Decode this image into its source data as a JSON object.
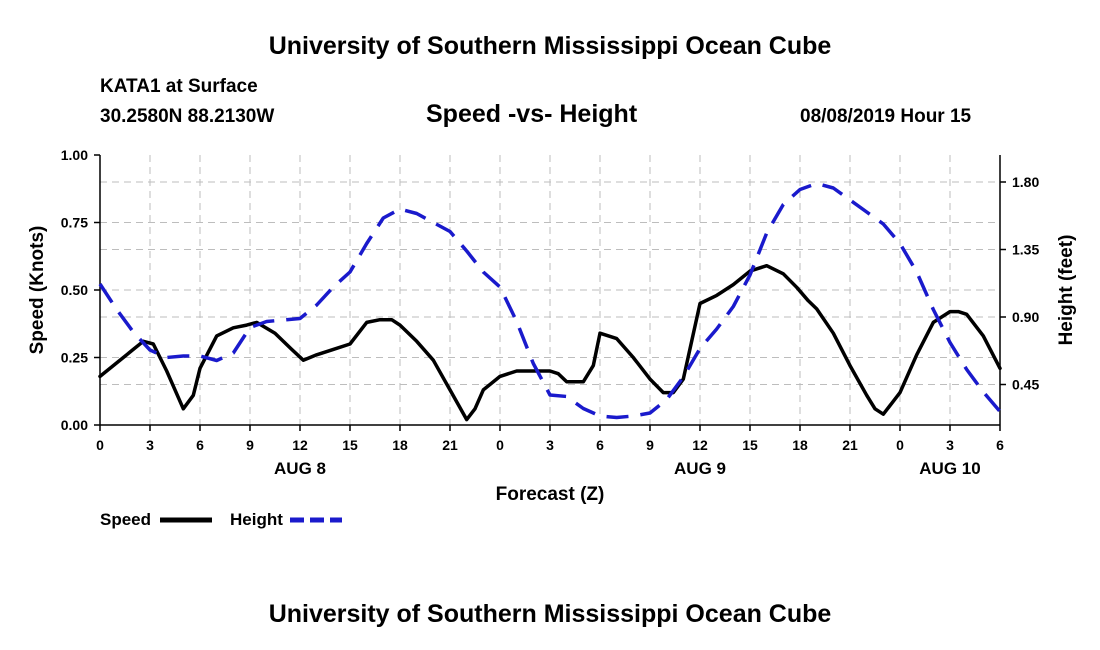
{
  "header": {
    "title": "University of Southern Mississippi Ocean Cube",
    "station": "KATA1 at Surface",
    "coords": "30.2580N 88.2130W",
    "subtitle": "Speed -vs- Height",
    "date": "08/08/2019 Hour 15"
  },
  "footer": {
    "title": "University of Southern Mississippi Ocean Cube"
  },
  "legend": {
    "speed_label": "Speed",
    "height_label": "Height"
  },
  "colors": {
    "speed": "#000000",
    "height": "#1a1acc",
    "grid": "#bdbdbd"
  },
  "chart_data": {
    "type": "line",
    "title": "Speed -vs- Height",
    "xlabel": "Forecast (Z)",
    "ylabel": "Speed (Knots)",
    "y2label": "Height (feet)",
    "xlim": [
      0,
      54
    ],
    "ylim": [
      0,
      1.0
    ],
    "y2lim": [
      0.18,
      1.98
    ],
    "x_ticks": [
      0,
      3,
      6,
      9,
      12,
      15,
      18,
      21,
      24,
      27,
      30,
      33,
      36,
      39,
      42,
      45,
      48,
      51,
      54
    ],
    "x_tick_labels": [
      "0",
      "3",
      "6",
      "9",
      "12",
      "15",
      "18",
      "21",
      "0",
      "3",
      "6",
      "9",
      "12",
      "15",
      "18",
      "21",
      "0",
      "3",
      "6"
    ],
    "y_ticks": [
      0,
      0.25,
      0.5,
      0.75,
      1.0
    ],
    "y_tick_labels": [
      "0.00",
      "0.25",
      "0.50",
      "0.75",
      "1.00"
    ],
    "y2_ticks": [
      0.45,
      0.9,
      1.35,
      1.8
    ],
    "y2_tick_labels": [
      "0.45",
      "0.90",
      "1.35",
      "1.80"
    ],
    "date_labels": [
      {
        "x": 12,
        "label": "AUG 8"
      },
      {
        "x": 36,
        "label": "AUG 9"
      },
      {
        "x": 51,
        "label": "AUG 10"
      }
    ],
    "grid": true,
    "series": [
      {
        "name": "Speed",
        "axis": "left",
        "style": "solid",
        "x": [
          0,
          1,
          2,
          2.6,
          3.2,
          4,
          5,
          5.6,
          6,
          7,
          8,
          8.8,
          9.4,
          10.5,
          11.5,
          12.2,
          13,
          14,
          15,
          16,
          16.8,
          17.5,
          18,
          19,
          20,
          21,
          22,
          22.5,
          23,
          24,
          25,
          26,
          27,
          27.5,
          28,
          29,
          29.6,
          30,
          31,
          32,
          33,
          33.8,
          34.4,
          35,
          36,
          37,
          38,
          39,
          40,
          41,
          41.8,
          42.5,
          43,
          44,
          45,
          46,
          46.5,
          47,
          48,
          49,
          50,
          51,
          51.5,
          52,
          53,
          54
        ],
        "y": [
          0.18,
          0.23,
          0.28,
          0.31,
          0.3,
          0.2,
          0.06,
          0.11,
          0.21,
          0.33,
          0.36,
          0.37,
          0.38,
          0.34,
          0.28,
          0.24,
          0.26,
          0.28,
          0.3,
          0.38,
          0.39,
          0.39,
          0.37,
          0.31,
          0.24,
          0.13,
          0.02,
          0.06,
          0.13,
          0.18,
          0.2,
          0.2,
          0.2,
          0.19,
          0.16,
          0.16,
          0.22,
          0.34,
          0.32,
          0.25,
          0.17,
          0.12,
          0.12,
          0.17,
          0.45,
          0.48,
          0.52,
          0.57,
          0.59,
          0.56,
          0.51,
          0.46,
          0.43,
          0.34,
          0.22,
          0.11,
          0.06,
          0.04,
          0.12,
          0.26,
          0.38,
          0.42,
          0.42,
          0.41,
          0.33,
          0.21
        ]
      },
      {
        "name": "Height",
        "axis": "right",
        "style": "dashed",
        "x": [
          0,
          1,
          2,
          3,
          4,
          5,
          6,
          7,
          8,
          9,
          10,
          11,
          12,
          13,
          14,
          15,
          16,
          17,
          18,
          19,
          20,
          21,
          22,
          23,
          24,
          25,
          26,
          27,
          28,
          29,
          30,
          31,
          32,
          33,
          34,
          35,
          36,
          37,
          38,
          39,
          40,
          41,
          42,
          43,
          44,
          45,
          46,
          47,
          48,
          49,
          50,
          51,
          52,
          53,
          54
        ],
        "y": [
          1.12,
          0.95,
          0.8,
          0.68,
          0.63,
          0.64,
          0.64,
          0.61,
          0.66,
          0.83,
          0.87,
          0.88,
          0.89,
          0.98,
          1.1,
          1.2,
          1.39,
          1.56,
          1.62,
          1.59,
          1.53,
          1.47,
          1.34,
          1.2,
          1.1,
          0.87,
          0.59,
          0.38,
          0.37,
          0.29,
          0.24,
          0.23,
          0.24,
          0.26,
          0.35,
          0.5,
          0.69,
          0.82,
          0.97,
          1.18,
          1.46,
          1.65,
          1.75,
          1.79,
          1.76,
          1.68,
          1.6,
          1.52,
          1.39,
          1.2,
          0.95,
          0.73,
          0.55,
          0.4,
          0.27
        ]
      }
    ]
  }
}
